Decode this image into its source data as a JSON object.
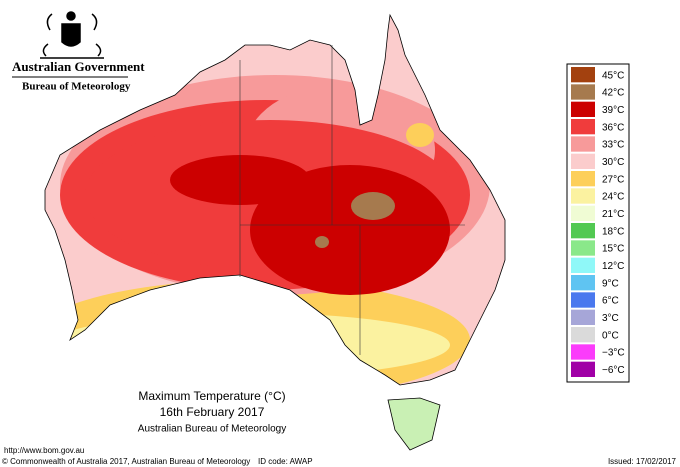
{
  "header": {
    "agency": "Australian Government",
    "bureau": "Bureau of Meteorology"
  },
  "legend": {
    "items": [
      {
        "label": "45°C",
        "color": "#a3410f"
      },
      {
        "label": "42°C",
        "color": "#a67a4e"
      },
      {
        "label": "39°C",
        "color": "#cc0000"
      },
      {
        "label": "36°C",
        "color": "#f03c3c"
      },
      {
        "label": "33°C",
        "color": "#f79a9a"
      },
      {
        "label": "30°C",
        "color": "#fbcccc"
      },
      {
        "label": "27°C",
        "color": "#fdcf5a"
      },
      {
        "label": "24°C",
        "color": "#fbf2a0"
      },
      {
        "label": "21°C",
        "color": "#f0fcd4"
      },
      {
        "label": "18°C",
        "color": "#52c952"
      },
      {
        "label": "15°C",
        "color": "#8ae88a"
      },
      {
        "label": "12°C",
        "color": "#8ff8f8"
      },
      {
        "label": "9°C",
        "color": "#5fc4f2"
      },
      {
        "label": "6°C",
        "color": "#4a78ee"
      },
      {
        "label": "3°C",
        "color": "#a6a6d8"
      },
      {
        "label": "0°C",
        "color": "#dadada"
      },
      {
        "label": "−3°C",
        "color": "#fb3cfb"
      },
      {
        "label": "−6°C",
        "color": "#a000a6"
      }
    ]
  },
  "caption": {
    "title": "Maximum Temperature (°C)",
    "date": "16th February 2017",
    "source": "Australian Bureau of Meteorology"
  },
  "footer": {
    "url": "http://www.bom.gov.au",
    "copyright": "© Commonwealth of Australia 2017, Australian Bureau of Meteorology",
    "id_code": "ID code: AWAP",
    "issued": "Issued: 17/02/2017"
  }
}
